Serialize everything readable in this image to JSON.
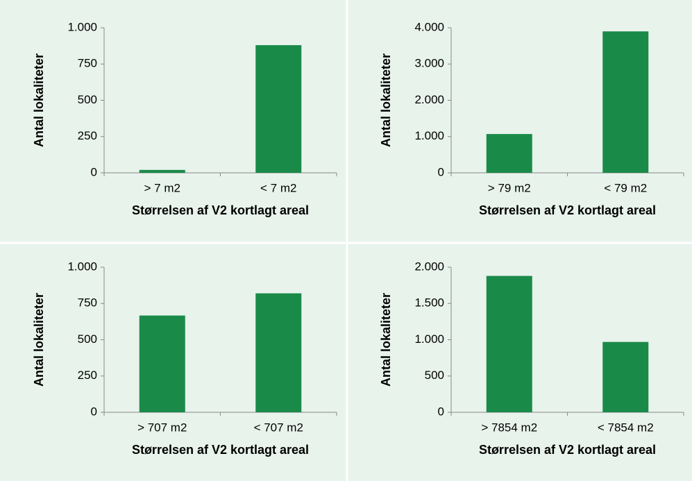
{
  "chart_data": [
    {
      "type": "bar",
      "ylabel": "Antal lokaliteter",
      "xlabel": "Størrelsen af V2 kortlagt areal",
      "categories": [
        "> 7 m2",
        "< 7 m2"
      ],
      "values": [
        20,
        880
      ],
      "color": "#1a8a48",
      "ylim": [
        0,
        1000
      ],
      "yticks": [
        0,
        250,
        500,
        750,
        {
          "value": 1000,
          "label": "1.000"
        }
      ]
    },
    {
      "type": "bar",
      "ylabel": "Antal lokaliteter",
      "xlabel": "Størrelsen af V2 kortlagt areal",
      "categories": [
        "> 79 m2",
        "< 79 m2"
      ],
      "values": [
        1070,
        3900
      ],
      "color": "#1a8a48",
      "ylim": [
        0,
        4000
      ],
      "yticks": [
        0,
        {
          "value": 1000,
          "label": "1.000"
        },
        {
          "value": 2000,
          "label": "2.000"
        },
        {
          "value": 3000,
          "label": "3.000"
        },
        {
          "value": 4000,
          "label": "4.000"
        }
      ]
    },
    {
      "type": "bar",
      "ylabel": "Antal lokaliteter",
      "xlabel": "Størrelsen af V2 kortlagt areal",
      "categories": [
        "> 707 m2",
        "< 707 m2"
      ],
      "values": [
        667,
        820
      ],
      "color": "#1a8a48",
      "ylim": [
        0,
        1000
      ],
      "yticks": [
        0,
        250,
        500,
        750,
        {
          "value": 1000,
          "label": "1.000"
        }
      ]
    },
    {
      "type": "bar",
      "ylabel": "Antal lokaliteter",
      "xlabel": "Størrelsen af V2 kortlagt areal",
      "categories": [
        "> 7854 m2",
        "< 7854 m2"
      ],
      "values": [
        1880,
        970
      ],
      "color": "#1a8a48",
      "ylim": [
        0,
        2000
      ],
      "yticks": [
        0,
        500,
        {
          "value": 1000,
          "label": "1.000"
        },
        {
          "value": 1500,
          "label": "1.500"
        },
        {
          "value": 2000,
          "label": "2.000"
        }
      ]
    }
  ]
}
